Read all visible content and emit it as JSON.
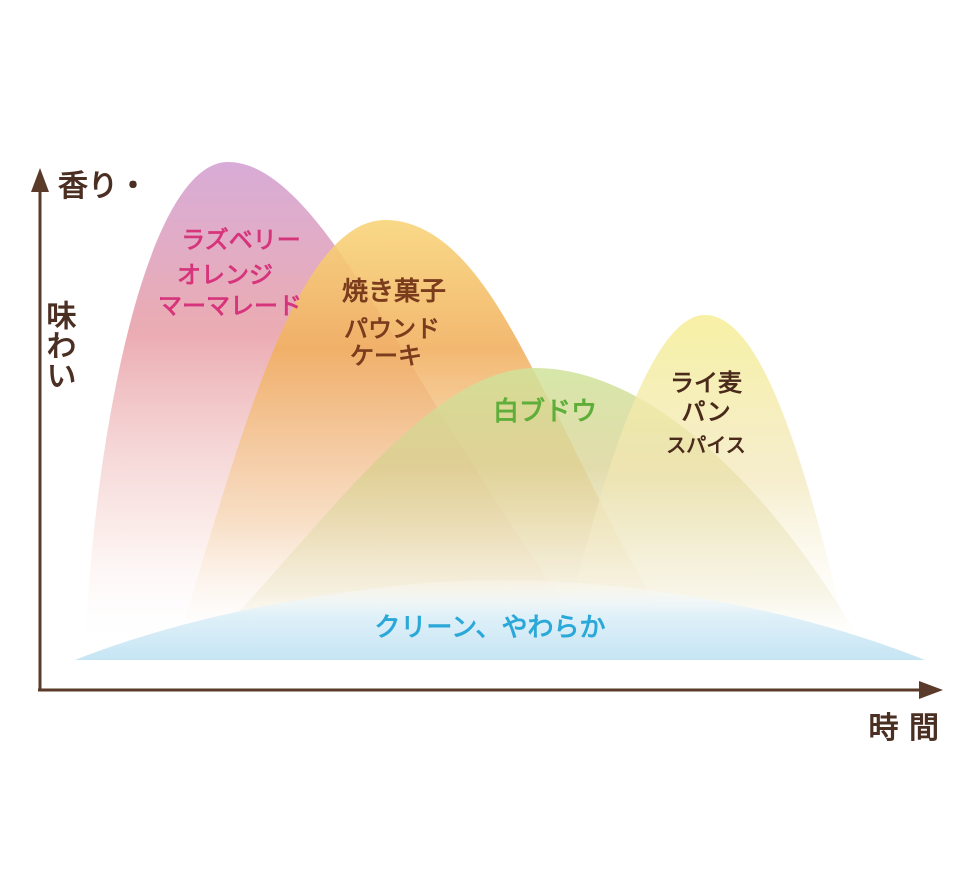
{
  "axes": {
    "y_label_lines": [
      "香り・",
      "味わい"
    ],
    "x_label": "時 間",
    "color": "#5a3b2a"
  },
  "phases": [
    {
      "id": "raspberry",
      "lines": [
        "ラズベリー",
        "オレンジ",
        "マーマレード"
      ],
      "text_color": "#d6357b",
      "fill_color": "#e5a4b4",
      "top_color": "#d9a6cf"
    },
    {
      "id": "baked",
      "lines": [
        "焼き菓子",
        "パウンド",
        "ケーキ"
      ],
      "text_color": "#7a3c1c",
      "fill_color": "#efa95a",
      "top_color": "#f7cf73"
    },
    {
      "id": "grape",
      "lines": [
        "白ブドウ"
      ],
      "text_color": "#5fae3a",
      "fill_color": "#d6cf8a",
      "top_color": "#cfe39c"
    },
    {
      "id": "rye",
      "lines": [
        "ライ麦",
        "パン",
        "スパイス"
      ],
      "text_color": "#4a2a1a",
      "fill_color": "#f3eab0",
      "top_color": "#f6ef9e"
    },
    {
      "id": "clean",
      "lines": [
        "クリーン、やわらか"
      ],
      "text_color": "#2aa8d8",
      "fill_color": "#d6ecf6",
      "top_color": "#bfe2f3"
    }
  ]
}
